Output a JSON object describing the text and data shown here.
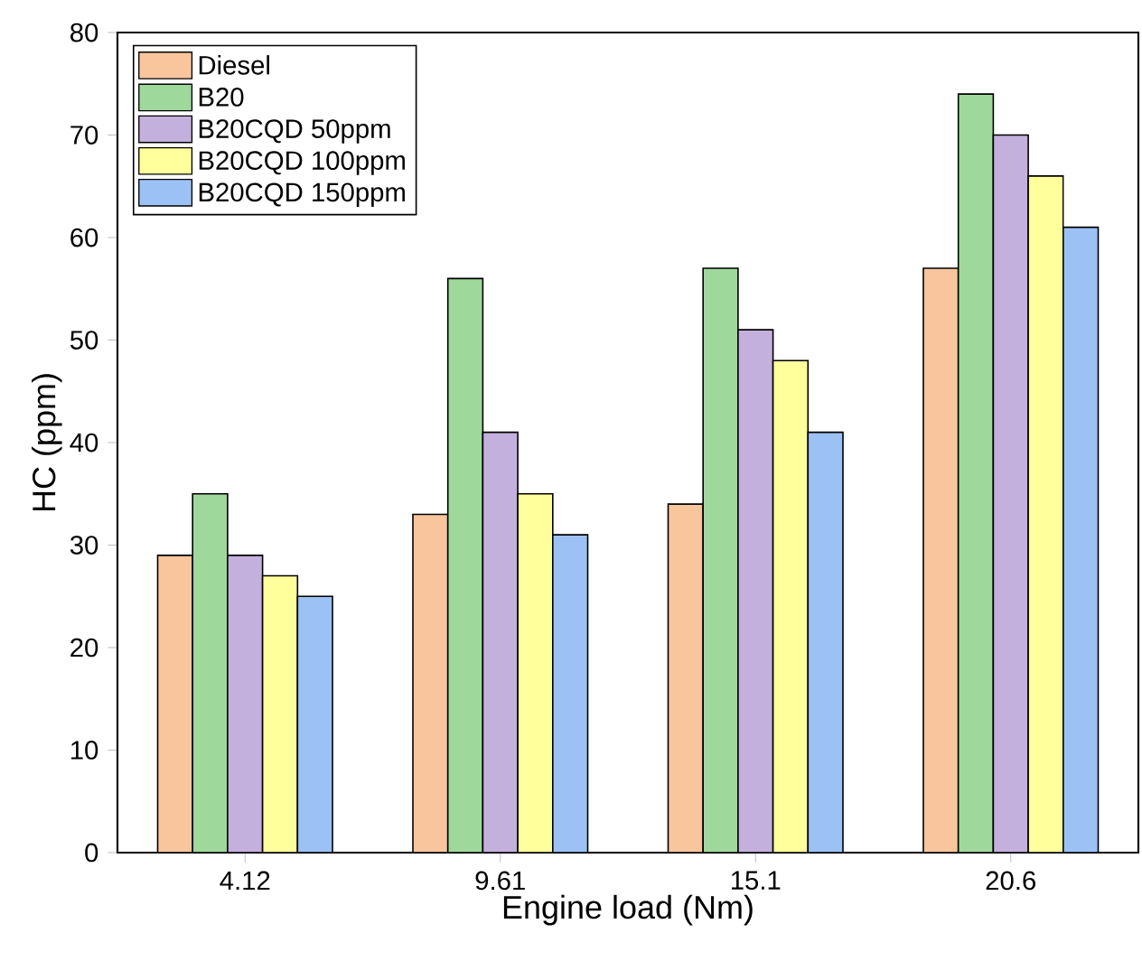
{
  "chart_data": {
    "type": "bar",
    "xlabel": "Engine load (Nm)",
    "ylabel": "HC (ppm)",
    "categories": [
      "4.12",
      "9.61",
      "15.1",
      "20.6"
    ],
    "series": [
      {
        "name": "Diesel",
        "color": "#f9c59c",
        "values": [
          29,
          33,
          34,
          57
        ]
      },
      {
        "name": "B20",
        "color": "#9fd89b",
        "values": [
          35,
          56,
          57,
          74
        ]
      },
      {
        "name": "B20CQD 50ppm",
        "color": "#c4b0dc",
        "values": [
          29,
          41,
          51,
          70
        ]
      },
      {
        "name": "B20CQD 100ppm",
        "color": "#ffff9c",
        "values": [
          27,
          35,
          48,
          66
        ]
      },
      {
        "name": "B20CQD 150ppm",
        "color": "#9cc1f5",
        "values": [
          25,
          31,
          41,
          61
        ]
      }
    ],
    "ylim": [
      0,
      80
    ],
    "yticks": [
      0,
      10,
      20,
      30,
      40,
      50,
      60,
      70,
      80
    ],
    "legend": "top left",
    "grid": false
  }
}
